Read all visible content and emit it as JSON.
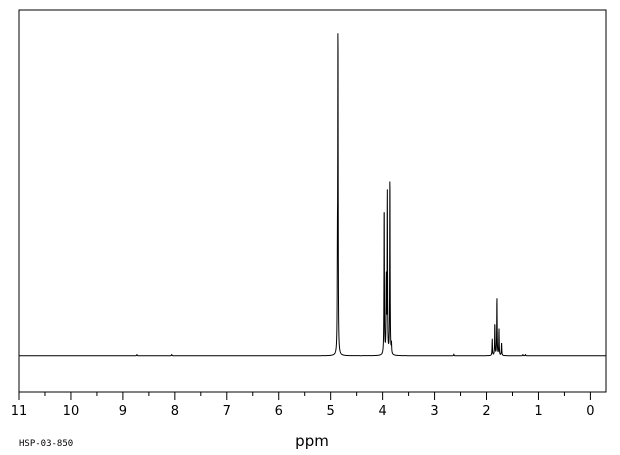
{
  "chart_data": {
    "type": "line",
    "title": "",
    "xlabel": "ppm",
    "ylabel": "",
    "sample_id": "HSP-03-850",
    "xlim": [
      11.0,
      -0.3
    ],
    "ylim": [
      -0.11,
      1.05
    ],
    "x_axis_reversed": true,
    "grid": false,
    "legend": "none",
    "line_color": "#000000",
    "major_ticks": [
      11,
      10,
      9,
      8,
      7,
      6,
      5,
      4,
      3,
      2,
      1,
      0
    ],
    "minor_ticks": [
      10.5,
      9.5,
      8.5,
      7.5,
      6.5,
      5.5,
      4.5,
      3.5,
      2.5,
      1.5,
      0.5
    ],
    "tick_labels": [
      "11",
      "10",
      "9",
      "8",
      "7",
      "6",
      "5",
      "4",
      "3",
      "2",
      "1",
      "0"
    ],
    "series": [
      {
        "peaks": [
          {
            "x": 8.73,
            "y": 0.004
          },
          {
            "x": 8.06,
            "y": 0.004
          },
          {
            "x": 4.87,
            "y": 0.25
          },
          {
            "x": 4.86,
            "y": 1.0
          },
          {
            "x": 3.97,
            "y": 0.47
          },
          {
            "x": 3.93,
            "y": 0.23
          },
          {
            "x": 3.91,
            "y": 0.5
          },
          {
            "x": 3.86,
            "y": 0.56
          },
          {
            "x": 3.83,
            "y": 0.03
          },
          {
            "x": 2.63,
            "y": 0.005
          },
          {
            "x": 1.89,
            "y": 0.05
          },
          {
            "x": 1.84,
            "y": 0.1
          },
          {
            "x": 1.8,
            "y": 0.18
          },
          {
            "x": 1.76,
            "y": 0.08
          },
          {
            "x": 1.71,
            "y": 0.04
          },
          {
            "x": 1.3,
            "y": 0.004
          },
          {
            "x": 1.25,
            "y": 0.004
          }
        ]
      }
    ]
  }
}
